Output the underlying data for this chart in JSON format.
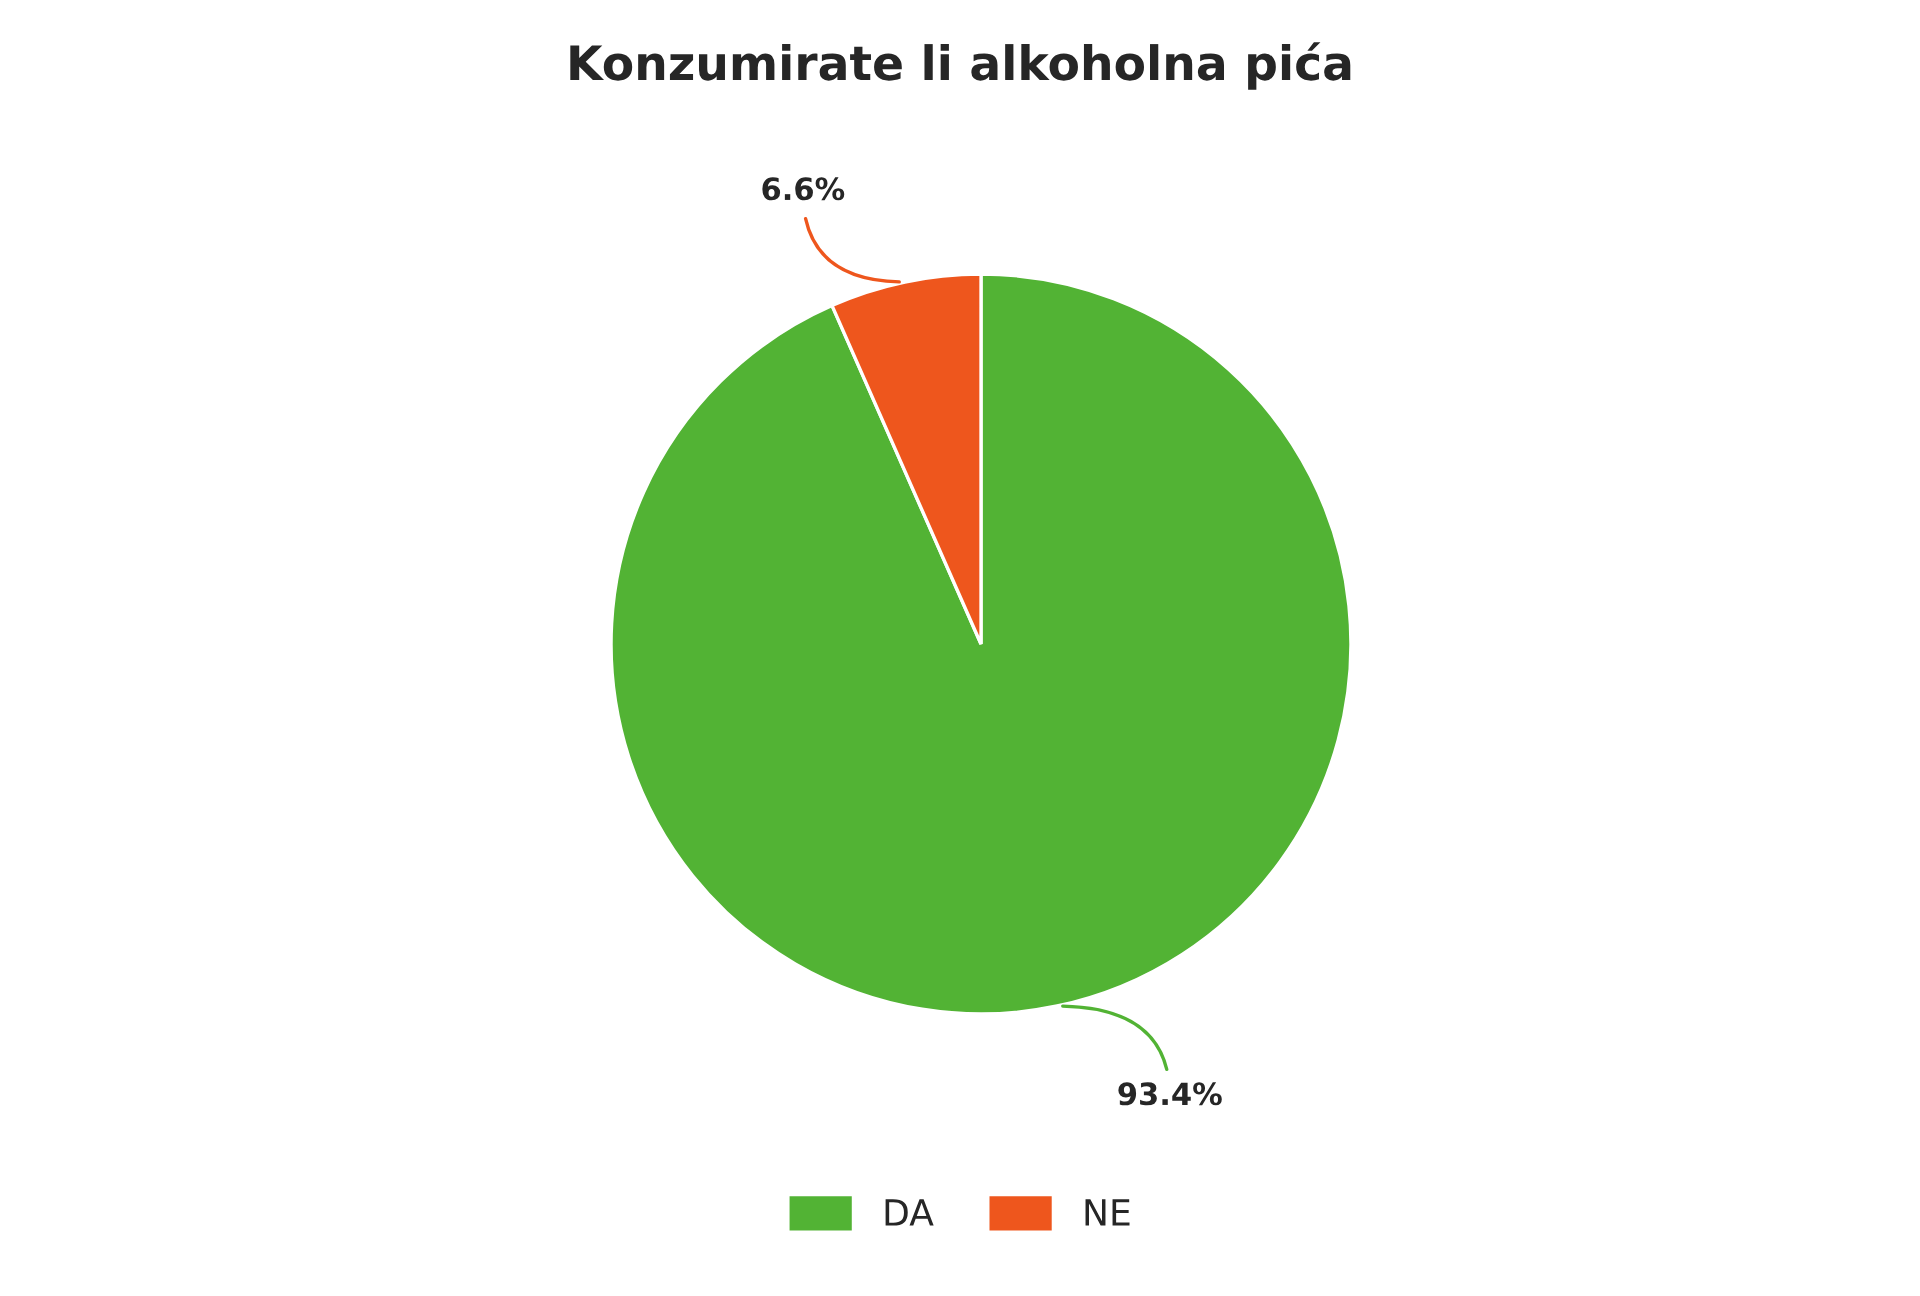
{
  "chart_data": {
    "type": "pie",
    "title": "Konzumirate li alkoholna pića",
    "categories": [
      "DA",
      "NE"
    ],
    "values": [
      93.4,
      6.6
    ],
    "colors": [
      "#52b334",
      "#ee561d"
    ],
    "value_labels": [
      "93.4%",
      "6.6%"
    ],
    "legend": "bottom"
  }
}
